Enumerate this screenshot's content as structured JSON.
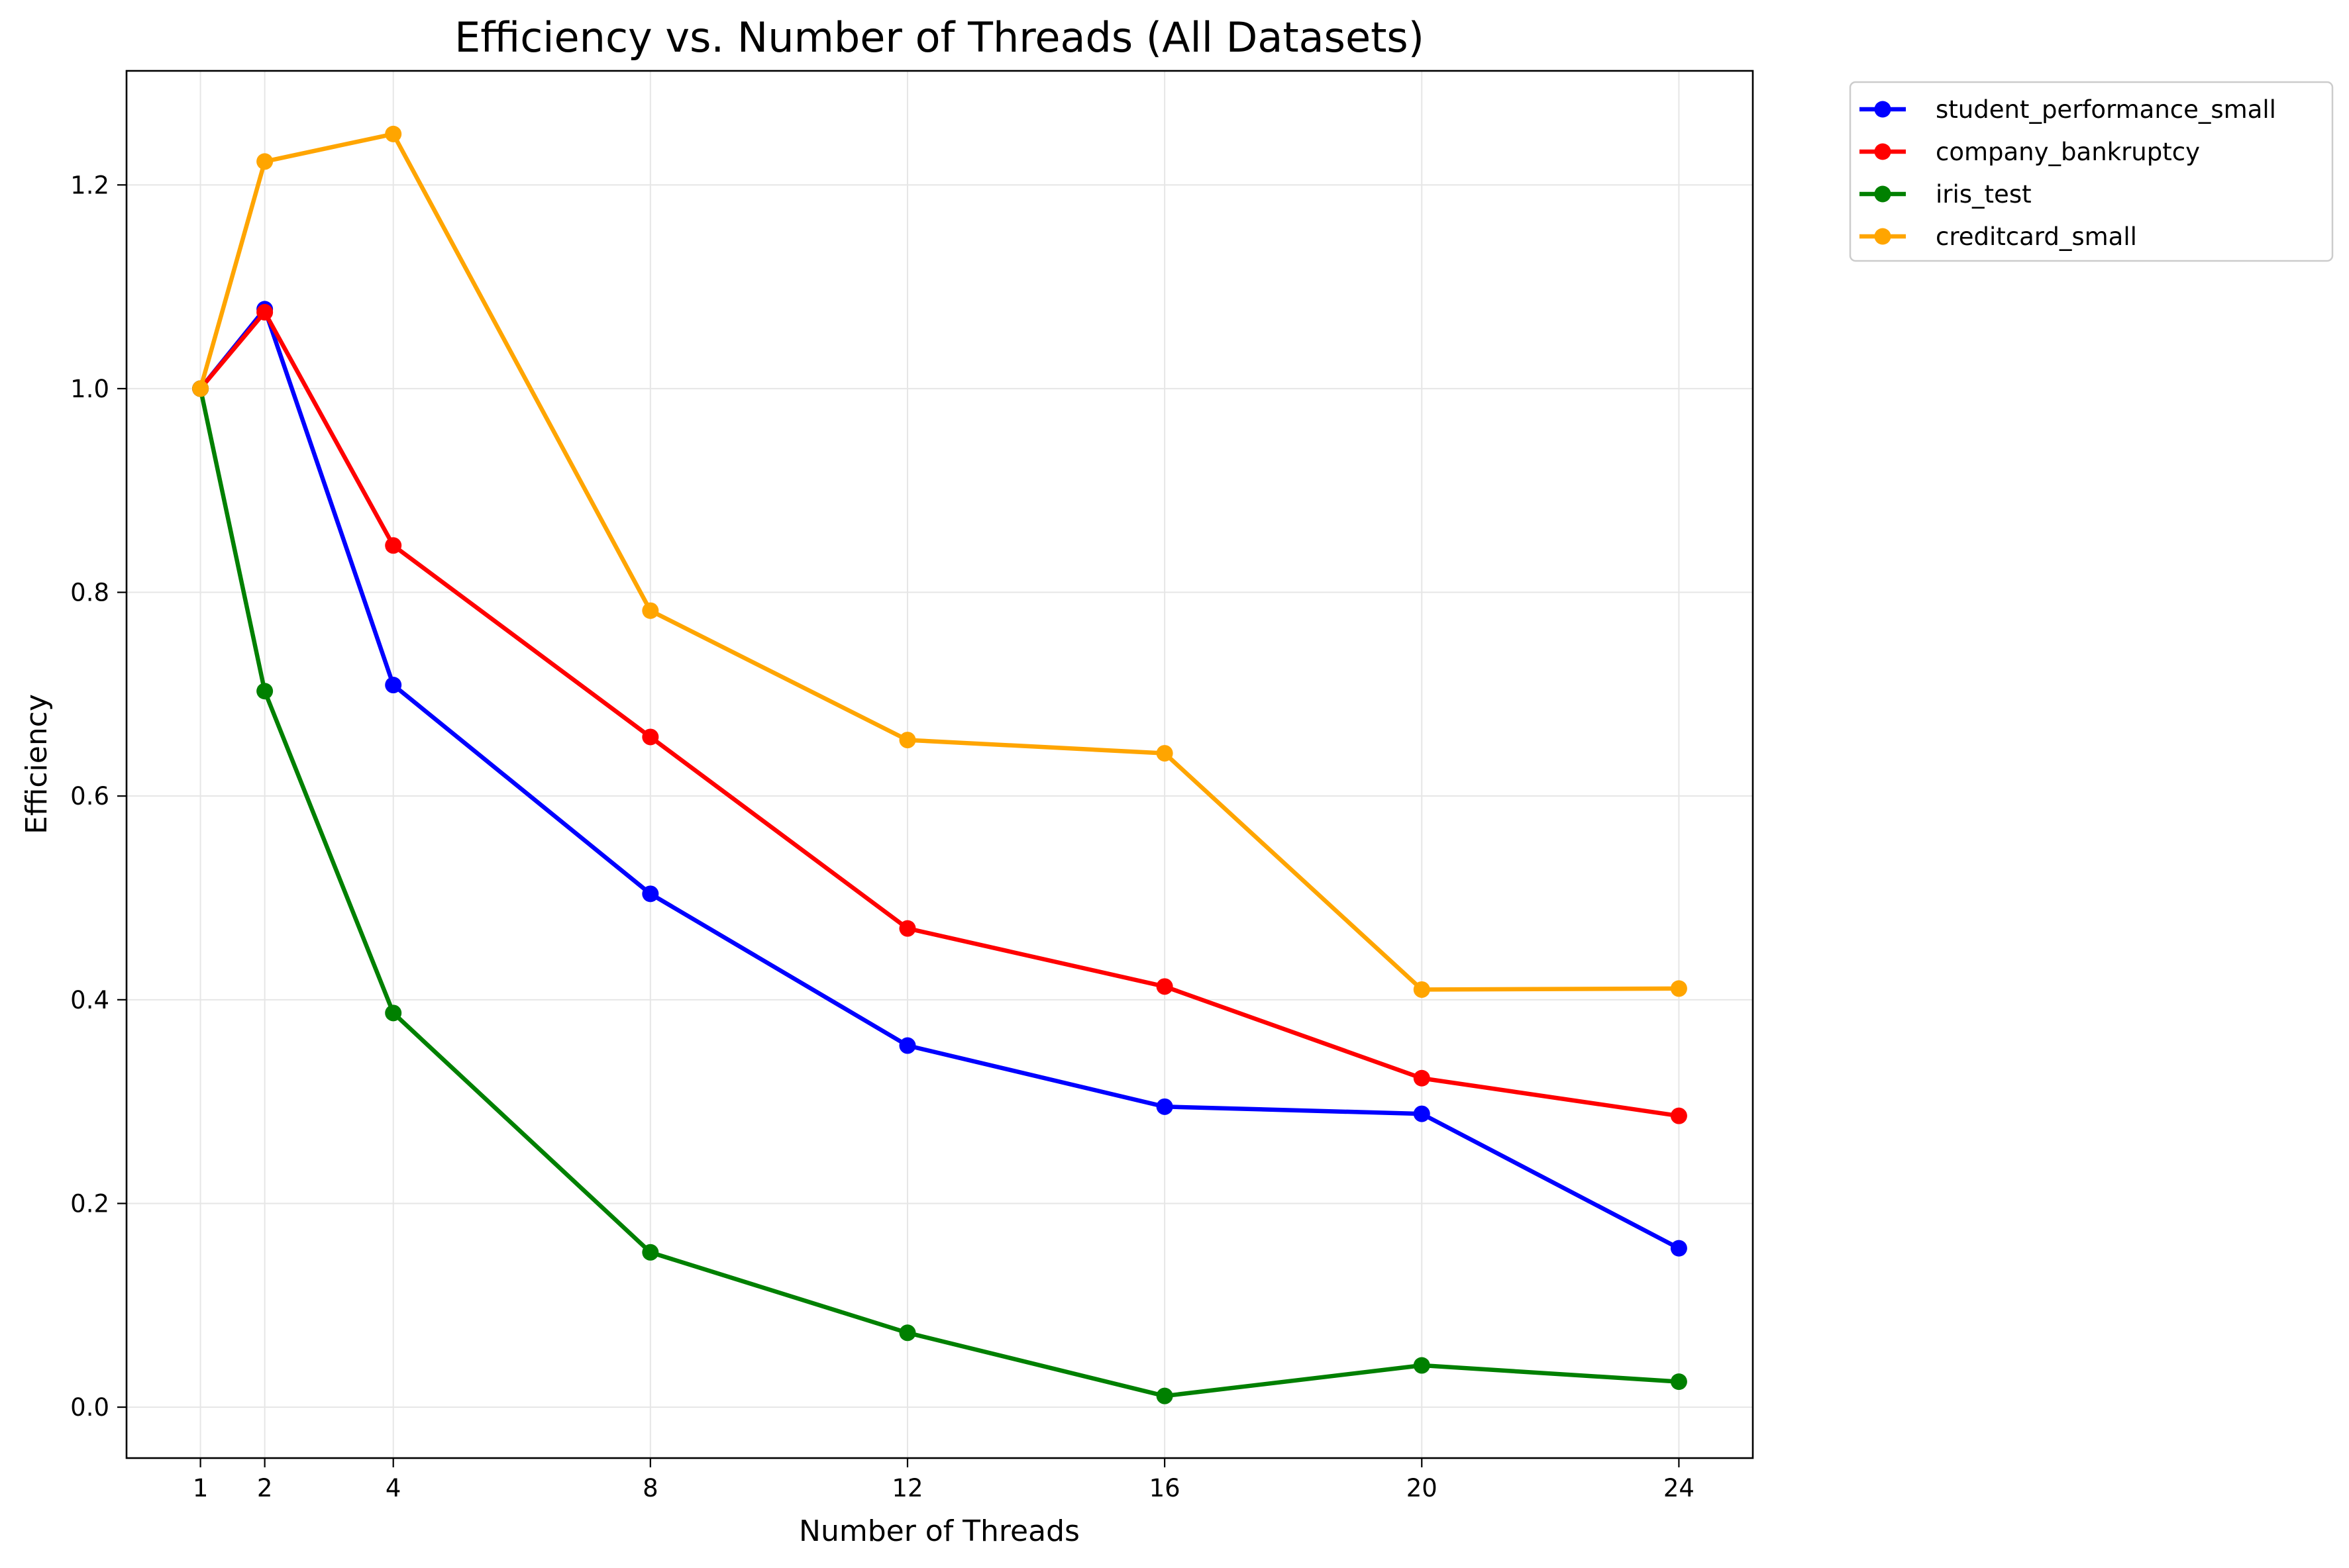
{
  "chart_data": {
    "type": "line",
    "title": "Efficiency vs. Number of Threads (All Datasets)",
    "xlabel": "Number of Threads",
    "ylabel": "Efficiency",
    "x": [
      1,
      2,
      4,
      8,
      12,
      16,
      20,
      24
    ],
    "x_ticks": [
      1,
      2,
      4,
      8,
      12,
      16,
      20,
      24
    ],
    "x_tick_labels": [
      "1",
      "2",
      "4",
      "8",
      "12",
      "16",
      "20",
      "24"
    ],
    "y_ticks": [
      0.0,
      0.2,
      0.4,
      0.6,
      0.8,
      1.0,
      1.2
    ],
    "y_tick_labels": [
      "0.0",
      "0.2",
      "0.4",
      "0.6",
      "0.8",
      "1.0",
      "1.2"
    ],
    "xlim": [
      -0.15,
      25.15
    ],
    "ylim": [
      -0.05,
      1.312
    ],
    "grid": true,
    "legend_position": "outside-top-right",
    "series": [
      {
        "name": "student_performance_small",
        "color": "#0000ff",
        "values": [
          1.0,
          1.078,
          0.709,
          0.504,
          0.355,
          0.295,
          0.288,
          0.156
        ]
      },
      {
        "name": "company_bankruptcy",
        "color": "#ff0000",
        "values": [
          1.0,
          1.075,
          0.846,
          0.658,
          0.47,
          0.413,
          0.323,
          0.286
        ]
      },
      {
        "name": "iris_test",
        "color": "#008000",
        "values": [
          1.0,
          0.703,
          0.387,
          0.152,
          0.073,
          0.011,
          0.041,
          0.025
        ]
      },
      {
        "name": "creditcard_small",
        "color": "#ffa500",
        "values": [
          1.0,
          1.223,
          1.25,
          0.782,
          0.655,
          0.642,
          0.41,
          0.411
        ]
      }
    ]
  }
}
